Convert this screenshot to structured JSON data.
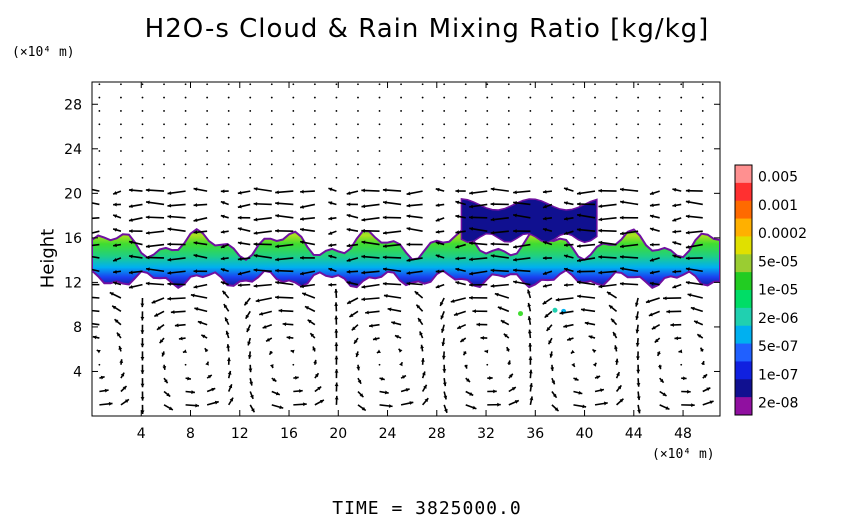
{
  "chart_data": {
    "type": "heatmap",
    "title": "H2O-s Cloud & Rain Mixing Ratio [kg/kg]",
    "xunit": "(×10⁴ m)",
    "yunit": "(×10⁴ m)",
    "ylabel": "Height",
    "xlim": [
      0,
      51
    ],
    "ylim": [
      0,
      30
    ],
    "xticks": [
      "4",
      "8",
      "12",
      "16",
      "20",
      "24",
      "28",
      "32",
      "36",
      "40",
      "44",
      "48"
    ],
    "yticks": [
      "4",
      "8",
      "12",
      "16",
      "20",
      "24",
      "28"
    ],
    "colorbar": {
      "labels": [
        "0.005",
        "0.001",
        "0.0002",
        "5e-05",
        "1e-05",
        "2e-06",
        "5e-07",
        "1e-07",
        "2e-08"
      ],
      "colors": [
        "#ff9090",
        "#ff3030",
        "#ff6a00",
        "#ffb000",
        "#e0e000",
        "#9acd32",
        "#22cc22",
        "#00dd66",
        "#20d0b0",
        "#00b0f0",
        "#2060ff",
        "#1020e0",
        "#101090",
        "#9010a0"
      ]
    },
    "cloud_layer": {
      "y_bottom": 12,
      "y_top": 16,
      "x_start": 0,
      "x_end": 51
    },
    "upper_cloud": {
      "x_start": 30,
      "x_end": 41,
      "y_bottom": 16,
      "y_top": 19.5
    },
    "footer": "TIME  =  3825000.0"
  }
}
